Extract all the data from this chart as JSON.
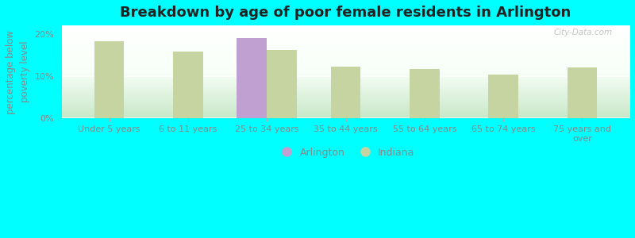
{
  "title": "Breakdown by age of poor female residents in Arlington",
  "categories": [
    "Under 5 years",
    "6 to 11 years",
    "25 to 34 years",
    "35 to 44 years",
    "55 to 64 years",
    "65 to 74 years",
    "75 years and\nover"
  ],
  "arlington_values": [
    null,
    null,
    19.0,
    null,
    null,
    null,
    null
  ],
  "indiana_values": [
    18.2,
    15.8,
    16.2,
    12.2,
    11.7,
    10.4,
    12.0
  ],
  "arlington_color": "#c0a0d0",
  "indiana_color": "#c5d4a0",
  "background_color": "#00ffff",
  "plot_bg_top": "#ffffff",
  "plot_bg_bottom": "#d8f0d8",
  "ylabel": "percentage below\npoverty level",
  "ylim": [
    0,
    22
  ],
  "yticks": [
    0,
    10,
    20
  ],
  "ytick_labels": [
    "0%",
    "10%",
    "20%"
  ],
  "bar_width": 0.38,
  "title_fontsize": 13,
  "axis_label_fontsize": 8.5,
  "tick_fontsize": 8,
  "legend_labels": [
    "Arlington",
    "Indiana"
  ],
  "watermark": "City-Data.com"
}
